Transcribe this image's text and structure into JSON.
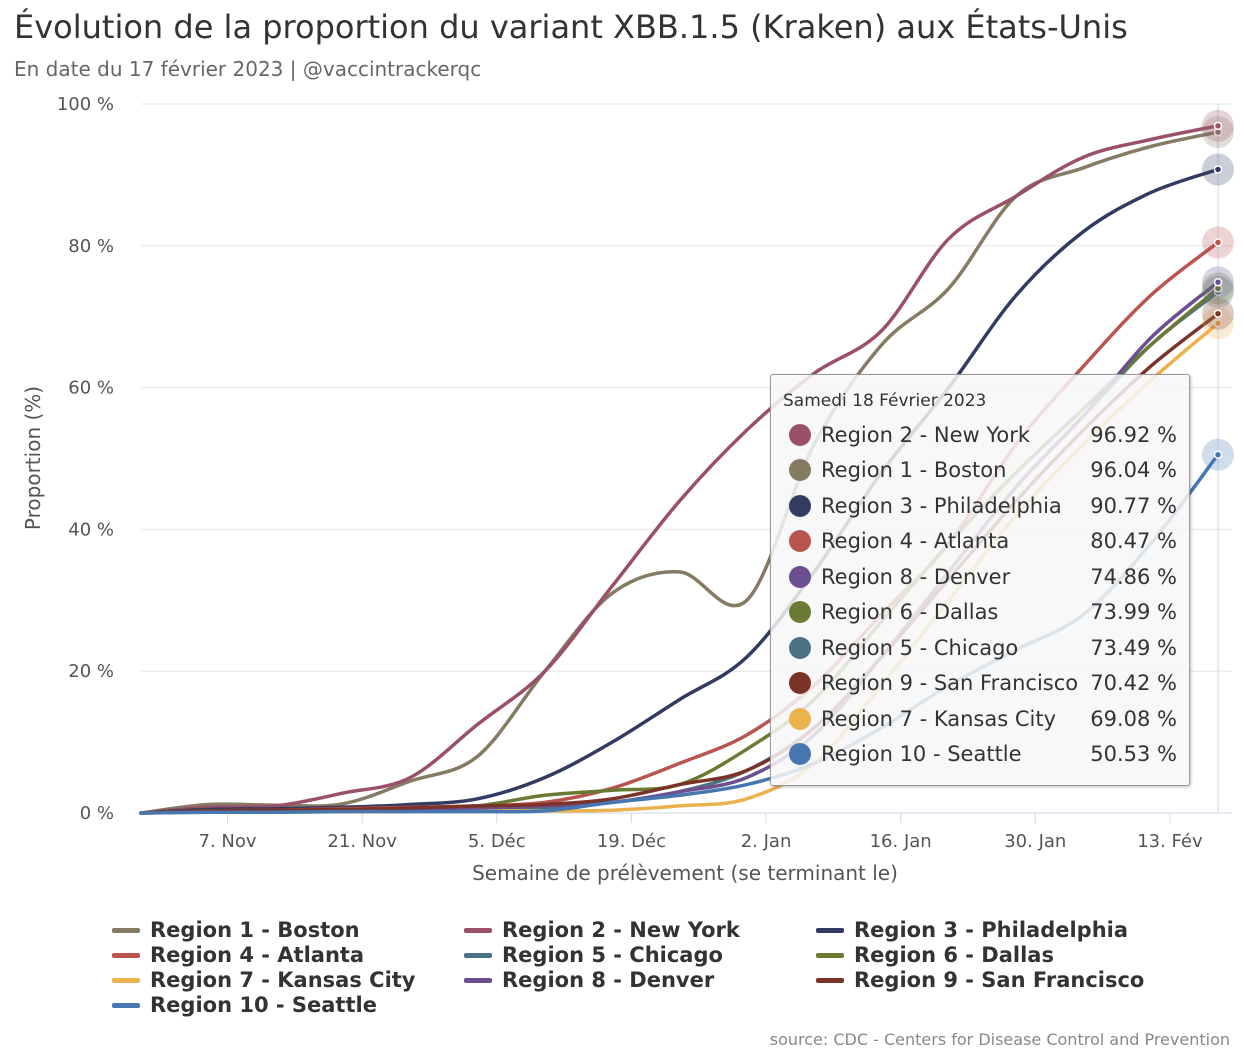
{
  "title": "Évolution de la proportion du variant XBB.1.5 (Kraken) aux États-Unis",
  "subtitle": "En date du 17 février 2023 | @vaccintrackerqc",
  "source": "source: CDC - Centers for Disease Control and Prevention",
  "chart_data": {
    "type": "line",
    "xlabel": "Semaine de prélèvement (se terminant le)",
    "ylabel": "Proportion (%)",
    "ylim": [
      0,
      100
    ],
    "y_ticks": [
      0,
      20,
      40,
      60,
      80,
      100
    ],
    "y_tick_labels": [
      "0 %",
      "20 %",
      "40 %",
      "60 %",
      "80 %",
      "100 %"
    ],
    "xlim": [
      "2022-10-29",
      "2023-02-18"
    ],
    "x_ticks": [
      "2022-11-07",
      "2022-11-21",
      "2022-12-05",
      "2022-12-19",
      "2023-01-02",
      "2023-01-16",
      "2023-01-30",
      "2023-02-13"
    ],
    "x_tick_labels": [
      "7. Nov",
      "21. Nov",
      "5. Déc",
      "19. Déc",
      "2. Jan",
      "16. Jan",
      "30. Jan",
      "13. Fév"
    ],
    "grid": "horizontal",
    "legend": "bottom",
    "series": [
      {
        "name": "Region 1 - Boston",
        "color": "#857A62",
        "x": [
          "2022-10-29",
          "2022-11-05",
          "2022-11-12",
          "2022-11-19",
          "2022-11-26",
          "2022-12-03",
          "2022-12-10",
          "2022-12-17",
          "2022-12-24",
          "2022-12-31",
          "2023-01-07",
          "2023-01-14",
          "2023-01-21",
          "2023-01-28",
          "2023-02-04",
          "2023-02-11",
          "2023-02-18"
        ],
        "y": [
          0,
          1.2,
          1.1,
          1.3,
          4.5,
          8,
          20,
          31,
          34,
          30,
          52,
          66,
          74,
          87,
          91,
          94,
          96.04
        ]
      },
      {
        "name": "Region 2 - New York",
        "color": "#9A5069",
        "x": [
          "2022-10-29",
          "2022-11-05",
          "2022-11-12",
          "2022-11-19",
          "2022-11-26",
          "2022-12-03",
          "2022-12-10",
          "2022-12-17",
          "2022-12-24",
          "2022-12-31",
          "2023-01-07",
          "2023-01-14",
          "2023-01-21",
          "2023-01-28",
          "2023-02-04",
          "2023-02-11",
          "2023-02-18"
        ],
        "y": [
          0,
          0.8,
          1,
          2.8,
          5,
          12.5,
          20,
          32,
          44,
          54,
          62,
          68,
          81,
          87,
          92.5,
          95,
          96.92
        ]
      },
      {
        "name": "Region 3 - Philadelphia",
        "color": "#323B62",
        "x": [
          "2022-10-29",
          "2022-11-05",
          "2022-11-12",
          "2022-11-19",
          "2022-11-26",
          "2022-12-03",
          "2022-12-10",
          "2022-12-17",
          "2022-12-24",
          "2022-12-31",
          "2023-01-07",
          "2023-01-14",
          "2023-01-21",
          "2023-01-28",
          "2023-02-04",
          "2023-02-11",
          "2023-02-18"
        ],
        "y": [
          0,
          0.5,
          0.6,
          0.8,
          1.2,
          2,
          5,
          10,
          16,
          22,
          34,
          48,
          60,
          73,
          82,
          87.5,
          90.77
        ]
      },
      {
        "name": "Region 4 - Atlanta",
        "color": "#B9544E",
        "x": [
          "2022-10-29",
          "2022-11-05",
          "2022-11-12",
          "2022-11-19",
          "2022-11-26",
          "2022-12-03",
          "2022-12-10",
          "2022-12-17",
          "2022-12-24",
          "2022-12-31",
          "2023-01-07",
          "2023-01-14",
          "2023-01-21",
          "2023-01-28",
          "2023-02-04",
          "2023-02-11",
          "2023-02-18"
        ],
        "y": [
          0,
          0.3,
          0.4,
          0.6,
          0.8,
          1,
          1.5,
          3.5,
          7,
          11,
          18,
          28,
          38,
          52,
          63,
          73,
          80.47
        ]
      },
      {
        "name": "Region 5 - Chicago",
        "color": "#4B7283",
        "x": [
          "2022-10-29",
          "2022-11-05",
          "2022-11-12",
          "2022-11-19",
          "2022-11-26",
          "2022-12-03",
          "2022-12-10",
          "2022-12-17",
          "2022-12-24",
          "2022-12-31",
          "2023-01-07",
          "2023-01-14",
          "2023-01-21",
          "2023-01-28",
          "2023-02-04",
          "2023-02-11",
          "2023-02-18"
        ],
        "y": [
          0,
          0.2,
          0.2,
          0.3,
          0.4,
          0.5,
          0.7,
          1.5,
          3,
          6,
          12,
          22,
          34,
          46,
          56,
          66,
          73.49
        ]
      },
      {
        "name": "Region 6 - Dallas",
        "color": "#6A7A33",
        "x": [
          "2022-10-29",
          "2022-11-05",
          "2022-11-12",
          "2022-11-19",
          "2022-11-26",
          "2022-12-03",
          "2022-12-10",
          "2022-12-17",
          "2022-12-24",
          "2022-12-31",
          "2023-01-07",
          "2023-01-14",
          "2023-01-21",
          "2023-01-28",
          "2023-02-04",
          "2023-02-11",
          "2023-02-18"
        ],
        "y": [
          0,
          0.3,
          0.3,
          0.4,
          0.6,
          1,
          2.5,
          3.2,
          4,
          9,
          16,
          27,
          38,
          48,
          57,
          66,
          73.99
        ]
      },
      {
        "name": "Region 7 - Kansas City",
        "color": "#EBB24E",
        "x": [
          "2022-10-29",
          "2022-11-05",
          "2022-11-12",
          "2022-11-19",
          "2022-11-26",
          "2022-12-03",
          "2022-12-10",
          "2022-12-17",
          "2022-12-24",
          "2022-12-31",
          "2023-01-07",
          "2023-01-14",
          "2023-01-21",
          "2023-01-28",
          "2023-02-04",
          "2023-02-11",
          "2023-02-18"
        ],
        "y": [
          0,
          0.1,
          0.1,
          0.2,
          0.2,
          0.3,
          0.3,
          0.4,
          1,
          2,
          7,
          18,
          30,
          42,
          52,
          61,
          69.08
        ]
      },
      {
        "name": "Region 8 - Denver",
        "color": "#6D4E91",
        "x": [
          "2022-10-29",
          "2022-11-05",
          "2022-11-12",
          "2022-11-19",
          "2022-11-26",
          "2022-12-03",
          "2022-12-10",
          "2022-12-17",
          "2022-12-24",
          "2022-12-31",
          "2023-01-07",
          "2023-01-14",
          "2023-01-21",
          "2023-01-28",
          "2023-02-04",
          "2023-02-11",
          "2023-02-18"
        ],
        "y": [
          0,
          0.2,
          0.2,
          0.3,
          0.5,
          0.7,
          1,
          1.5,
          3,
          5,
          11,
          22,
          34,
          46,
          56,
          67,
          74.86
        ]
      },
      {
        "name": "Region 9 - San Francisco",
        "color": "#7B3328",
        "x": [
          "2022-10-29",
          "2022-11-05",
          "2022-11-12",
          "2022-11-19",
          "2022-11-26",
          "2022-12-03",
          "2022-12-10",
          "2022-12-17",
          "2022-12-24",
          "2022-12-31",
          "2023-01-07",
          "2023-01-14",
          "2023-01-21",
          "2023-01-28",
          "2023-02-04",
          "2023-02-11",
          "2023-02-18"
        ],
        "y": [
          0,
          0.3,
          0.4,
          0.5,
          0.7,
          1,
          1.2,
          2,
          4,
          6,
          12,
          22,
          33,
          44,
          54,
          63,
          70.42
        ]
      },
      {
        "name": "Region 10 - Seattle",
        "color": "#4677B0",
        "x": [
          "2022-10-29",
          "2022-11-05",
          "2022-11-12",
          "2022-11-19",
          "2022-11-26",
          "2022-12-03",
          "2022-12-10",
          "2022-12-17",
          "2022-12-24",
          "2022-12-31",
          "2023-01-07",
          "2023-01-14",
          "2023-01-21",
          "2023-01-28",
          "2023-02-04",
          "2023-02-11",
          "2023-02-18"
        ],
        "y": [
          0,
          0.1,
          0.1,
          0.2,
          0.2,
          0.2,
          0.3,
          1.5,
          2.5,
          4,
          7,
          12,
          18,
          23,
          28,
          38,
          50.53
        ]
      }
    ],
    "legend_order": [
      0,
      1,
      2,
      3,
      4,
      5,
      6,
      7,
      8,
      9
    ]
  },
  "tooltip": {
    "header": "Samedi 18 Février 2023",
    "rows": [
      {
        "name": "Region 2 - New York",
        "value": "96.92 %",
        "color": "#9A5069"
      },
      {
        "name": "Region 1 - Boston",
        "value": "96.04 %",
        "color": "#857A62"
      },
      {
        "name": "Region 3 - Philadelphia",
        "value": "90.77 %",
        "color": "#323B62"
      },
      {
        "name": "Region 4 - Atlanta",
        "value": "80.47 %",
        "color": "#B9544E"
      },
      {
        "name": "Region 8 - Denver",
        "value": "74.86 %",
        "color": "#6D4E91"
      },
      {
        "name": "Region 6 - Dallas",
        "value": "73.99 %",
        "color": "#6A7A33"
      },
      {
        "name": "Region 5 - Chicago",
        "value": "73.49 %",
        "color": "#4B7283"
      },
      {
        "name": "Region 9 - San Francisco",
        "value": "70.42 %",
        "color": "#7B3328"
      },
      {
        "name": "Region 7 - Kansas City",
        "value": "69.08 %",
        "color": "#EBB24E"
      },
      {
        "name": "Region 10 - Seattle",
        "value": "50.53 %",
        "color": "#4677B0"
      }
    ]
  }
}
